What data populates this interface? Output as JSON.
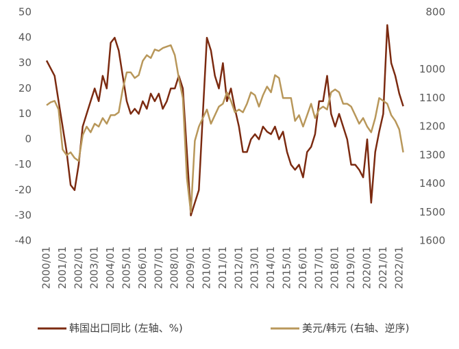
{
  "chart_data": {
    "type": "line",
    "x": [
      "2000/01",
      "2000/04",
      "2000/07",
      "2000/10",
      "2001/01",
      "2001/04",
      "2001/07",
      "2001/10",
      "2002/01",
      "2002/04",
      "2002/07",
      "2002/10",
      "2003/01",
      "2003/04",
      "2003/07",
      "2003/10",
      "2004/01",
      "2004/04",
      "2004/07",
      "2004/10",
      "2005/01",
      "2005/04",
      "2005/07",
      "2005/10",
      "2006/01",
      "2006/04",
      "2006/07",
      "2006/10",
      "2007/01",
      "2007/04",
      "2007/07",
      "2007/10",
      "2008/01",
      "2008/04",
      "2008/07",
      "2008/10",
      "2009/01",
      "2009/04",
      "2009/07",
      "2009/10",
      "2010/01",
      "2010/04",
      "2010/07",
      "2010/10",
      "2011/01",
      "2011/04",
      "2011/07",
      "2011/10",
      "2012/01",
      "2012/04",
      "2012/07",
      "2012/10",
      "2013/01",
      "2013/04",
      "2013/07",
      "2013/10",
      "2014/01",
      "2014/04",
      "2014/07",
      "2014/10",
      "2015/01",
      "2015/04",
      "2015/07",
      "2015/10",
      "2016/01",
      "2016/04",
      "2016/07",
      "2016/10",
      "2017/01",
      "2017/04",
      "2017/07",
      "2017/10",
      "2018/01",
      "2018/04",
      "2018/07",
      "2018/10",
      "2019/01",
      "2019/04",
      "2019/07",
      "2019/10",
      "2020/01",
      "2020/04",
      "2020/07",
      "2020/10",
      "2021/01",
      "2021/04",
      "2021/07",
      "2021/10",
      "2022/01",
      "2022/04"
    ],
    "xticks": [
      "2000/01",
      "2001/01",
      "2002/01",
      "2003/01",
      "2004/01",
      "2005/01",
      "2006/01",
      "2007/01",
      "2008/01",
      "2009/01",
      "2010/01",
      "2011/01",
      "2012/01",
      "2013/01",
      "2014/01",
      "2015/01",
      "2016/01",
      "2017/01",
      "2018/01",
      "2019/01",
      "2020/01",
      "2021/01",
      "2022/01"
    ],
    "series": [
      {
        "name": "韩国出口同比 (左轴、%)",
        "color": "#7b2a10",
        "axis": "y",
        "values": [
          31,
          28,
          25,
          15,
          5,
          -5,
          -18,
          -20,
          -10,
          5,
          10,
          15,
          20,
          15,
          25,
          20,
          38,
          40,
          35,
          25,
          15,
          10,
          12,
          10,
          15,
          12,
          18,
          15,
          18,
          12,
          15,
          20,
          20,
          25,
          20,
          -5,
          -30,
          -25,
          -20,
          10,
          40,
          35,
          25,
          20,
          30,
          15,
          20,
          12,
          5,
          -5,
          -5,
          0,
          2,
          0,
          5,
          3,
          2,
          5,
          0,
          3,
          -5,
          -10,
          -12,
          -10,
          -15,
          -5,
          -3,
          2,
          15,
          15,
          25,
          10,
          5,
          10,
          5,
          0,
          -10,
          -10,
          -12,
          -15,
          0,
          -25,
          -5,
          3,
          10,
          45,
          30,
          25,
          18,
          13
        ]
      },
      {
        "name": "美元/韩元 (右轴、逆序)",
        "color": "#b8975a",
        "axis": "y2",
        "values": [
          1125,
          1115,
          1110,
          1140,
          1280,
          1300,
          1290,
          1310,
          1320,
          1230,
          1200,
          1220,
          1190,
          1200,
          1170,
          1190,
          1160,
          1160,
          1150,
          1070,
          1010,
          1010,
          1030,
          1020,
          970,
          950,
          960,
          930,
          935,
          925,
          920,
          915,
          950,
          1030,
          1100,
          1380,
          1500,
          1250,
          1200,
          1170,
          1140,
          1190,
          1160,
          1130,
          1120,
          1080,
          1110,
          1150,
          1140,
          1150,
          1120,
          1080,
          1090,
          1130,
          1090,
          1060,
          1080,
          1020,
          1030,
          1100,
          1100,
          1100,
          1180,
          1160,
          1200,
          1160,
          1120,
          1170,
          1140,
          1130,
          1140,
          1080,
          1070,
          1080,
          1120,
          1120,
          1130,
          1160,
          1190,
          1170,
          1200,
          1220,
          1170,
          1100,
          1110,
          1120,
          1160,
          1180,
          1210,
          1290
        ]
      }
    ],
    "ylim": [
      -40,
      50
    ],
    "yticks": [
      -40,
      -30,
      -20,
      -10,
      0,
      10,
      20,
      30,
      40,
      50
    ],
    "y2lim": [
      1600,
      800
    ],
    "y2ticks": [
      800,
      1000,
      1100,
      1200,
      1300,
      1400,
      1500,
      1600
    ],
    "y2_inverted": true,
    "grid": false,
    "legend": "bottom"
  }
}
